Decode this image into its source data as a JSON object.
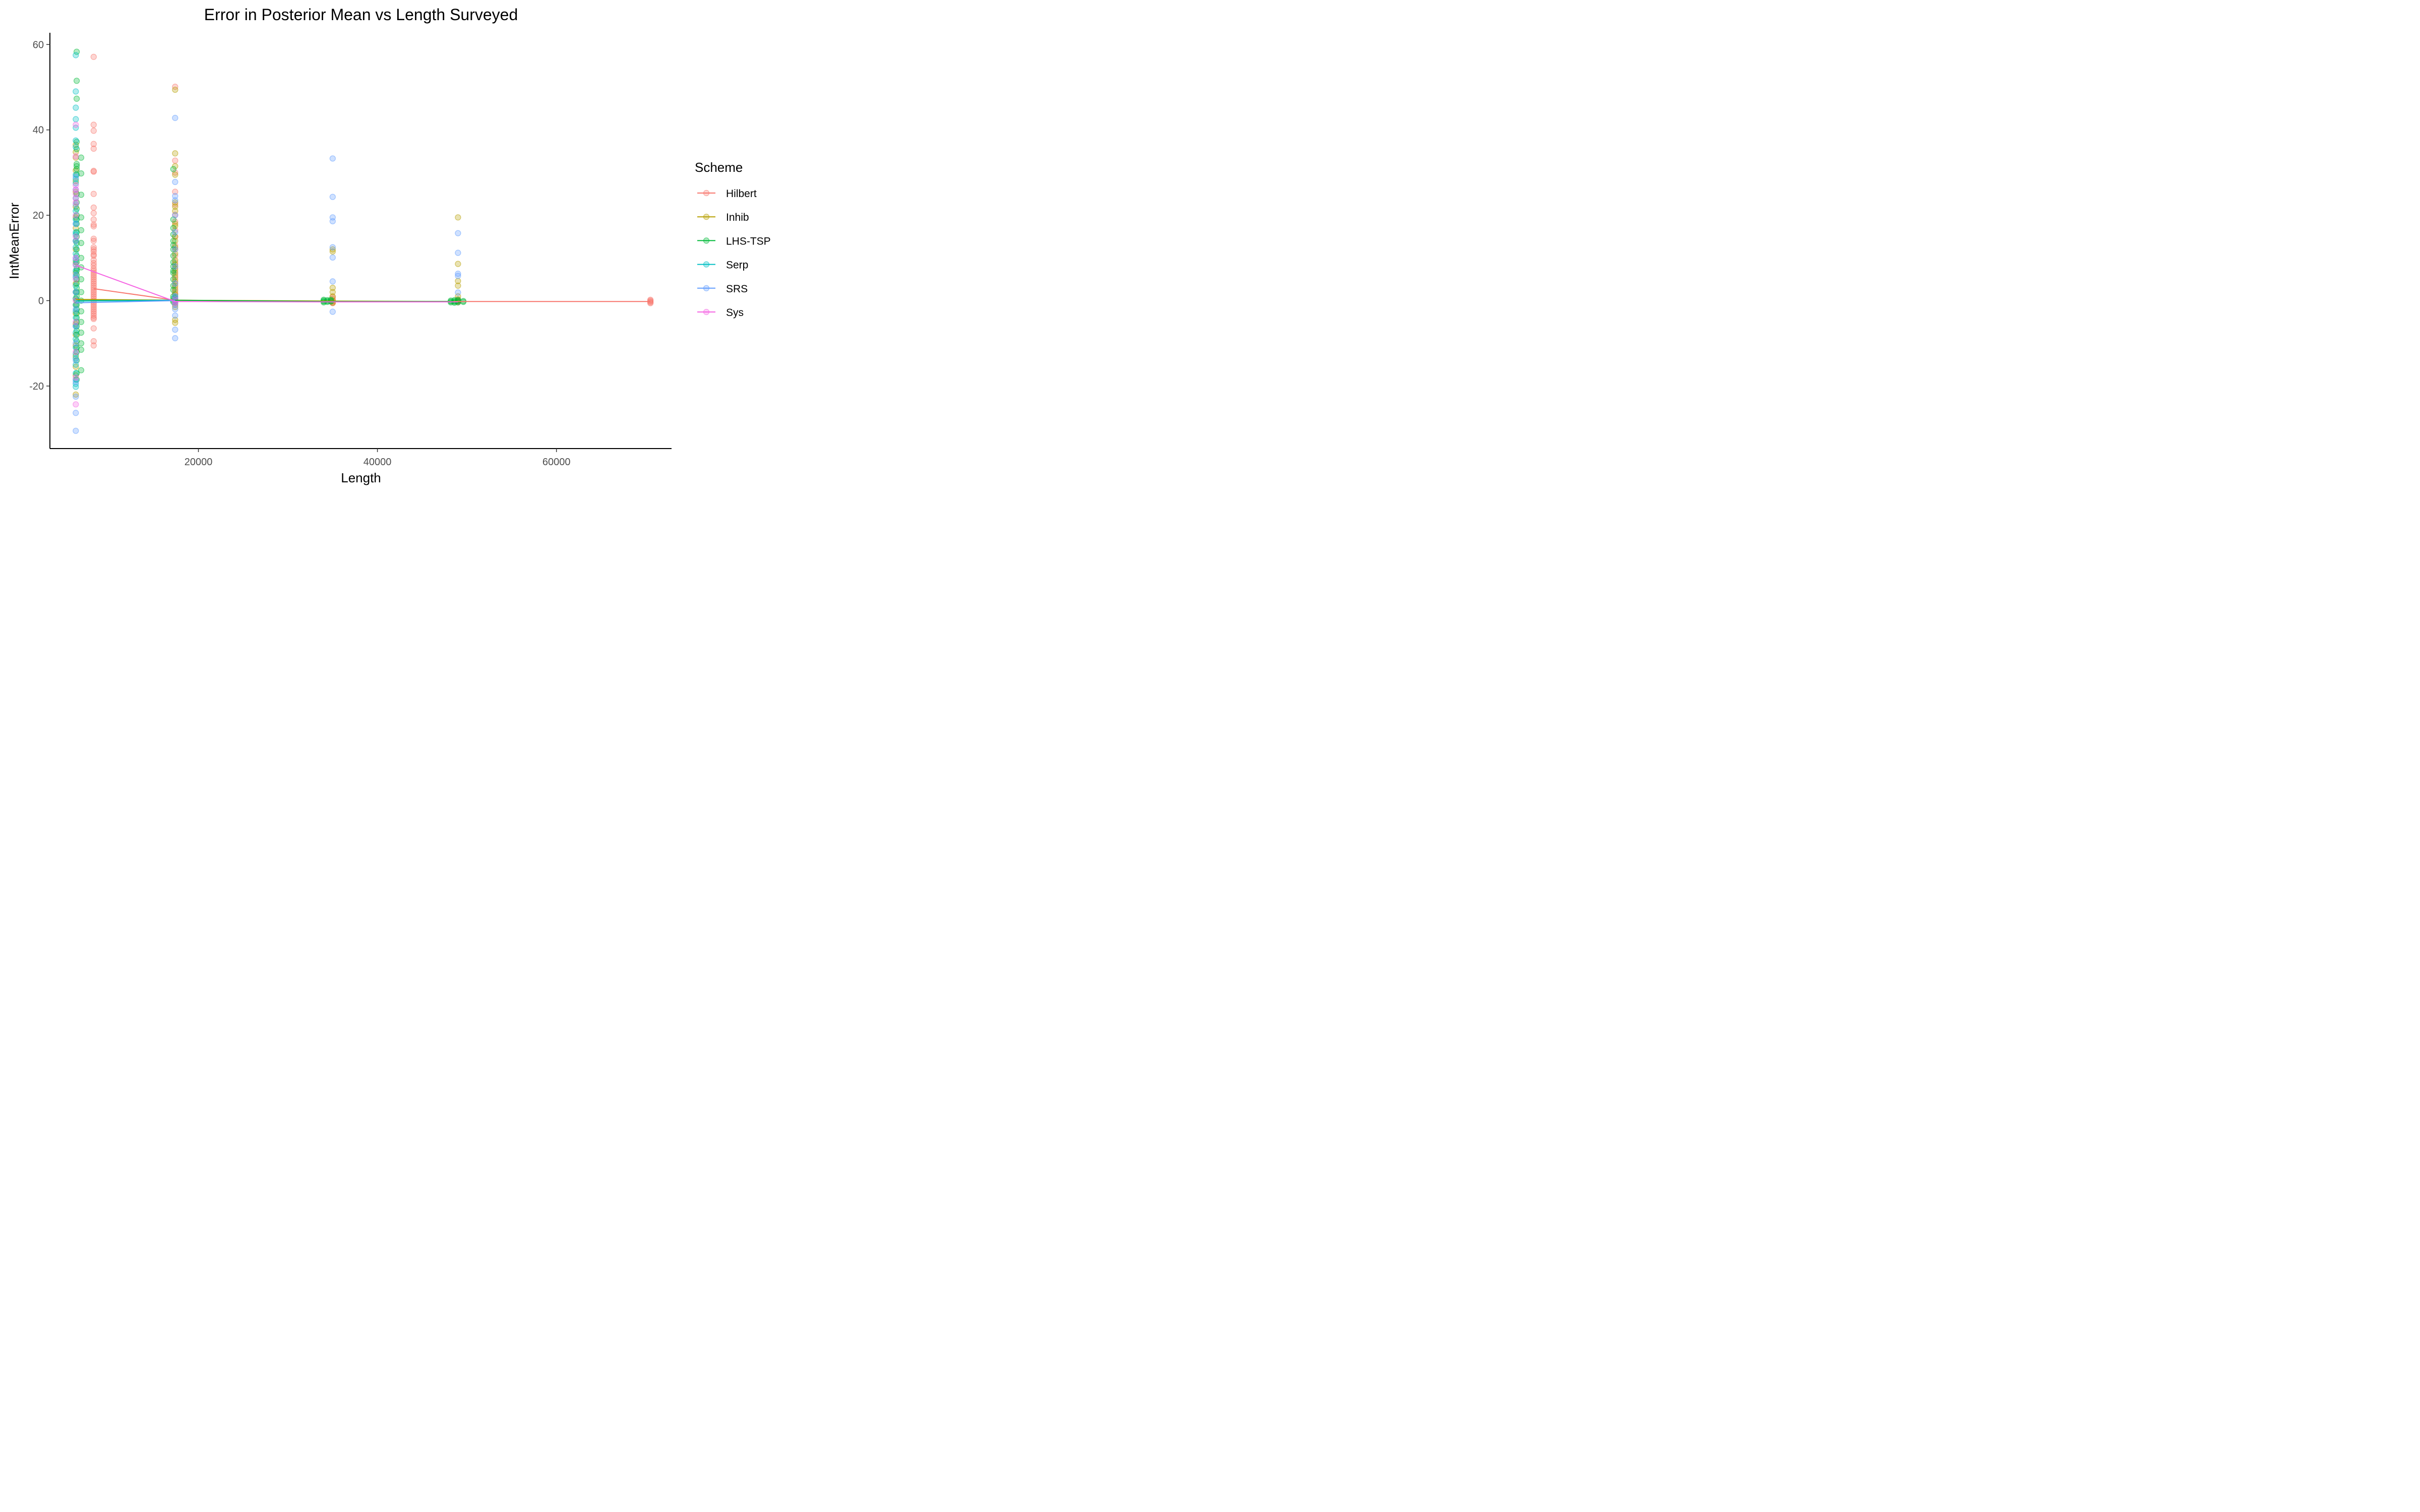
{
  "chart_data": {
    "type": "scatter",
    "title": "Error in Posterior Mean vs Length Surveyed",
    "xlabel": "Length",
    "ylabel": "IntMeanError",
    "xlim": [
      4800,
      73000
    ],
    "ylim": [
      -34,
      63
    ],
    "xticks": [
      20000,
      40000,
      60000
    ],
    "xtick_labels": [
      "20000",
      "40000",
      "60000"
    ],
    "yticks": [
      -20,
      0,
      20,
      40,
      60
    ],
    "ytick_labels": [
      "-20",
      "0",
      "20",
      "40",
      "60"
    ],
    "legend": {
      "title": "Scheme",
      "position": "right",
      "entries": [
        {
          "name": "Hilbert",
          "color": "#F8766D"
        },
        {
          "name": "Inhib",
          "color": "#B79F00"
        },
        {
          "name": "LHS-TSP",
          "color": "#00BA38"
        },
        {
          "name": "Serp",
          "color": "#00BFC4"
        },
        {
          "name": "SRS",
          "color": "#619CFF"
        },
        {
          "name": "Sys",
          "color": "#F564E3"
        }
      ]
    },
    "series": [
      {
        "name": "Hilbert",
        "color": "#F8766D",
        "line": {
          "x": [
            8300,
            17400,
            35000,
            49000,
            70500
          ],
          "y": [
            2.8,
            0.1,
            -0.2,
            -0.2,
            -0.2
          ]
        },
        "points": [
          {
            "x": 8300,
            "y": [
              57.1,
              41.2,
              39.8,
              36.7,
              35.6,
              30.4,
              30.2,
              25.0,
              21.8,
              20.5,
              19.0,
              17.8,
              17.4,
              14.5,
              14.0,
              12.5,
              12.0,
              11.5,
              10.8,
              10.5,
              9.5,
              8.8,
              8.2,
              7.5,
              7.0,
              6.5,
              6.0,
              5.5,
              5.0,
              4.5,
              4.0,
              3.5,
              3.0,
              2.5,
              2.0,
              1.5,
              1.0,
              0.5,
              0.0,
              -0.5,
              -1.0,
              -1.5,
              -2.0,
              -2.5,
              -3.0,
              -3.5,
              -4.0,
              -4.3,
              -6.5,
              -9.5,
              -10.5
            ]
          },
          {
            "x": 17400,
            "y": [
              50.1,
              32.8,
              30.0,
              25.5,
              22.5,
              20.1,
              18.5,
              16.5,
              15.0,
              13.0,
              12.0,
              10.5,
              9.0,
              8.0,
              7.0,
              6.0,
              5.0,
              4.0,
              3.0,
              2.0,
              1.5,
              1.0,
              0.5,
              0.3,
              0.1,
              -0.1,
              -0.3,
              -0.5,
              -1.0
            ]
          },
          {
            "x": 35000,
            "y": [
              0.8,
              0.4,
              0.0,
              -0.2,
              -0.4,
              -0.6
            ]
          },
          {
            "x": 49000,
            "y": [
              0.3,
              0.0,
              -0.2,
              -0.4
            ]
          },
          {
            "x": 70500,
            "y": [
              0.2,
              0.0,
              -0.2,
              -0.4,
              -0.6
            ]
          }
        ]
      },
      {
        "name": "Inhib",
        "color": "#B79F00",
        "line": {
          "x": [
            6300,
            17400,
            35000,
            49000
          ],
          "y": [
            0.3,
            0.1,
            -0.1,
            -0.2
          ]
        },
        "points": [
          {
            "x": 6300,
            "y": [
              36.5,
              34.8,
              33.5,
              30.5,
              28.0,
              25.5,
              22.0,
              19.5,
              17.0,
              14.0,
              12.0,
              9.0,
              6.5,
              4.0,
              2.0,
              0.5,
              -1.0,
              -3.0,
              -5.5,
              -8.0,
              -10.5,
              -13.0,
              -15.5,
              -17.5,
              -22.0
            ]
          },
          {
            "x": 17400,
            "y": [
              49.4,
              34.5,
              31.5,
              29.5,
              23.0,
              22.0,
              21.0,
              18.0,
              17.5,
              15.0,
              14.0,
              12.5,
              11.0,
              9.5,
              8.5,
              7.5,
              6.5,
              5.5,
              4.5,
              3.5,
              2.5,
              1.5,
              0.5,
              -0.5,
              -1.5,
              -4.5,
              -5.2
            ]
          },
          {
            "x": 35000,
            "y": [
              12.0,
              11.5,
              3.0,
              2.0,
              1.0,
              0.0,
              -0.5
            ]
          },
          {
            "x": 49000,
            "y": [
              19.5,
              8.6,
              4.6,
              3.5,
              1.0,
              0.0
            ]
          }
        ]
      },
      {
        "name": "LHS-TSP",
        "color": "#00BA38",
        "line": {
          "x": [
            6500,
            17000,
            34200,
            48500
          ],
          "y": [
            0.0,
            0.1,
            -0.2,
            -0.2
          ]
        },
        "points": [
          {
            "x": 6400,
            "y": [
              58.3,
              51.5,
              47.3,
              37.2,
              35.5,
              32.0,
              31.5,
              30.8,
              29.5,
              25.0,
              23.0,
              21.5,
              20.0,
              19.0,
              18.0,
              16.0,
              15.0,
              13.5,
              12.0,
              10.5,
              9.0,
              7.5,
              7.0,
              6.0,
              5.0,
              4.0,
              3.0,
              2.0,
              1.0,
              0.0,
              -1.0,
              -2.0,
              -3.0,
              -4.0,
              -5.0,
              -6.0,
              -7.0,
              -8.0,
              -9.5,
              -11.0,
              -12.0,
              -14.0,
              -17.0,
              -18.5
            ]
          },
          {
            "x": 6900,
            "y": [
              33.5,
              29.8,
              24.8,
              19.5,
              16.5,
              13.5,
              10.0,
              7.8,
              5.0,
              2.0,
              0.0,
              -2.5,
              -5.0,
              -7.5,
              -10.0,
              -11.5,
              -16.3
            ]
          },
          {
            "x": 17200,
            "y": [
              30.8,
              19.0,
              17.0,
              15.5,
              14.0,
              13.0,
              12.0,
              10.5,
              9.0,
              8.0,
              7.0,
              6.5,
              5.0,
              3.5,
              2.5,
              1.0,
              0.5,
              0.0,
              -0.3
            ]
          },
          {
            "x": 34000,
            "y": [
              0.2,
              0.0,
              -0.2,
              -0.4
            ]
          },
          {
            "x": 34400,
            "y": [
              0.1,
              -0.1,
              -0.3
            ]
          },
          {
            "x": 34800,
            "y": [
              0.2,
              0.0,
              -0.2
            ]
          },
          {
            "x": 48200,
            "y": [
              0.0,
              -0.2,
              -0.4
            ]
          },
          {
            "x": 48600,
            "y": [
              0.1,
              -0.1,
              -0.3,
              -0.5
            ]
          },
          {
            "x": 49000,
            "y": [
              0.2,
              0.0,
              -0.2,
              -0.4
            ]
          },
          {
            "x": 49600,
            "y": [
              -0.1,
              -0.3
            ]
          }
        ]
      },
      {
        "name": "Serp",
        "color": "#00BFC4",
        "line": {
          "x": [
            6300,
            17400
          ],
          "y": [
            -0.1,
            0.1
          ]
        },
        "points": [
          {
            "x": 6300,
            "y": [
              57.5,
              49.0,
              45.2,
              42.5,
              40.5,
              37.5,
              36.0,
              29.5,
              28.5,
              27.5,
              24.0,
              21.0,
              19.0,
              18.0,
              16.0,
              15.5,
              14.0,
              12.5,
              11.0,
              9.5,
              8.5,
              7.0,
              5.5,
              3.5,
              2.0,
              0.5,
              -1.0,
              -2.5,
              -4.0,
              -6.0,
              -7.5,
              -9.0,
              -11.0,
              -12.5,
              -13.5,
              -15.0,
              -17.0,
              -18.5,
              -19.5,
              -20.2
            ]
          },
          {
            "x": 17400,
            "y": [
              1.0,
              0.5,
              0.0,
              -0.5
            ]
          }
        ]
      },
      {
        "name": "SRS",
        "color": "#619CFF",
        "line": {
          "x": [
            6300,
            17400
          ],
          "y": [
            -0.5,
            0.0
          ]
        },
        "points": [
          {
            "x": 6300,
            "y": [
              29.0,
              26.0,
              22.5,
              18.0,
              14.0,
              10.0,
              6.0,
              2.0,
              -2.0,
              -6.0,
              -10.0,
              -14.0,
              -19.0,
              -22.5,
              -26.3,
              -30.5
            ]
          },
          {
            "x": 17400,
            "y": [
              42.8,
              27.8,
              24.5,
              23.5,
              20.0,
              16.0,
              12.0,
              8.0,
              4.0,
              1.0,
              -1.0,
              -2.0,
              -3.5,
              -6.8,
              -8.8
            ]
          },
          {
            "x": 35000,
            "y": [
              33.3,
              24.3,
              19.5,
              18.6,
              12.5,
              10.1,
              4.5,
              -2.6
            ]
          },
          {
            "x": 49000,
            "y": [
              15.8,
              11.2,
              6.3,
              5.8,
              1.9
            ]
          }
        ]
      },
      {
        "name": "Sys",
        "color": "#F564E3",
        "line": {
          "x": [
            6300,
            17400,
            35000,
            49000
          ],
          "y": [
            8.3,
            -0.2,
            -0.3,
            -0.3
          ]
        },
        "points": [
          {
            "x": 6300,
            "y": [
              41.2,
              33.8,
              27.0,
              26.0,
              25.0,
              24.0,
              23.0,
              20.0,
              15.0,
              10.0,
              8.3,
              5.0,
              0.0,
              -5.0,
              -12.0,
              -18.0,
              -24.3
            ]
          },
          {
            "x": 17400,
            "y": [
              0.3,
              -0.2,
              -0.5
            ]
          }
        ]
      }
    ]
  }
}
